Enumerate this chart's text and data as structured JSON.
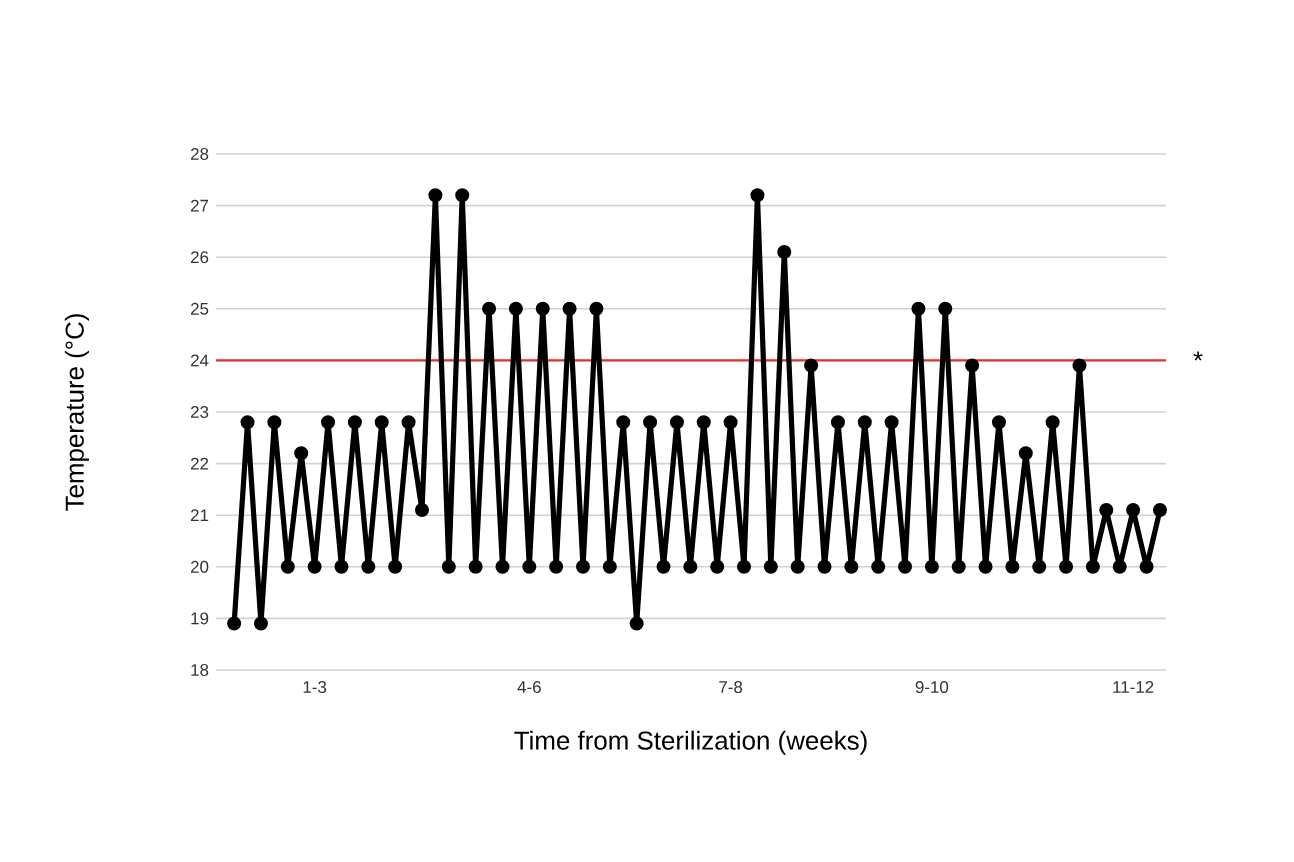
{
  "chart_data": {
    "type": "line",
    "xlabel": "Time from Sterilization (weeks)",
    "ylabel": "Temperature (°C)",
    "categories": [
      null,
      null,
      null,
      null,
      null,
      null,
      "1-3",
      null,
      null,
      null,
      null,
      null,
      null,
      null,
      null,
      null,
      null,
      null,
      null,
      null,
      null,
      null,
      "4-6",
      null,
      null,
      null,
      null,
      null,
      null,
      null,
      null,
      null,
      null,
      null,
      null,
      null,
      null,
      "7-8",
      null,
      null,
      null,
      null,
      null,
      null,
      null,
      null,
      null,
      null,
      null,
      null,
      null,
      null,
      "9-10",
      null,
      null,
      null,
      null,
      null,
      null,
      null,
      null,
      null,
      null,
      null,
      null,
      null,
      null,
      "11-12",
      null,
      null
    ],
    "series": [
      {
        "color": "#000000",
        "values": [
          18.9,
          22.8,
          18.9,
          22.8,
          20,
          22.2,
          20,
          22.8,
          20,
          22.8,
          20,
          22.8,
          20,
          22.8,
          21.1,
          27.2,
          20,
          27.2,
          20,
          25,
          20,
          25,
          20,
          25,
          20,
          25,
          20,
          25,
          20,
          22.8,
          18.9,
          22.8,
          20,
          22.8,
          20,
          22.8,
          20,
          22.8,
          20,
          27.2,
          20,
          26.1,
          20,
          23.9,
          20,
          22.8,
          20,
          22.8,
          20,
          22.8,
          20,
          25,
          20,
          25,
          20,
          23.9,
          20,
          22.8,
          20,
          22.2,
          20,
          22.8,
          20,
          23.9,
          20,
          21.1,
          20,
          21.1,
          20,
          21.1
        ]
      }
    ],
    "ylim": [
      18,
      28
    ],
    "yticks": [
      18,
      19,
      20,
      21,
      22,
      23,
      24,
      25,
      26,
      27,
      28
    ],
    "grid": "y",
    "marker": "circle",
    "line_style": "solid",
    "ref_lines": [
      {
        "axis": "y",
        "value": 24,
        "color": "#e8312f"
      }
    ],
    "annotations": [
      "*"
    ]
  }
}
